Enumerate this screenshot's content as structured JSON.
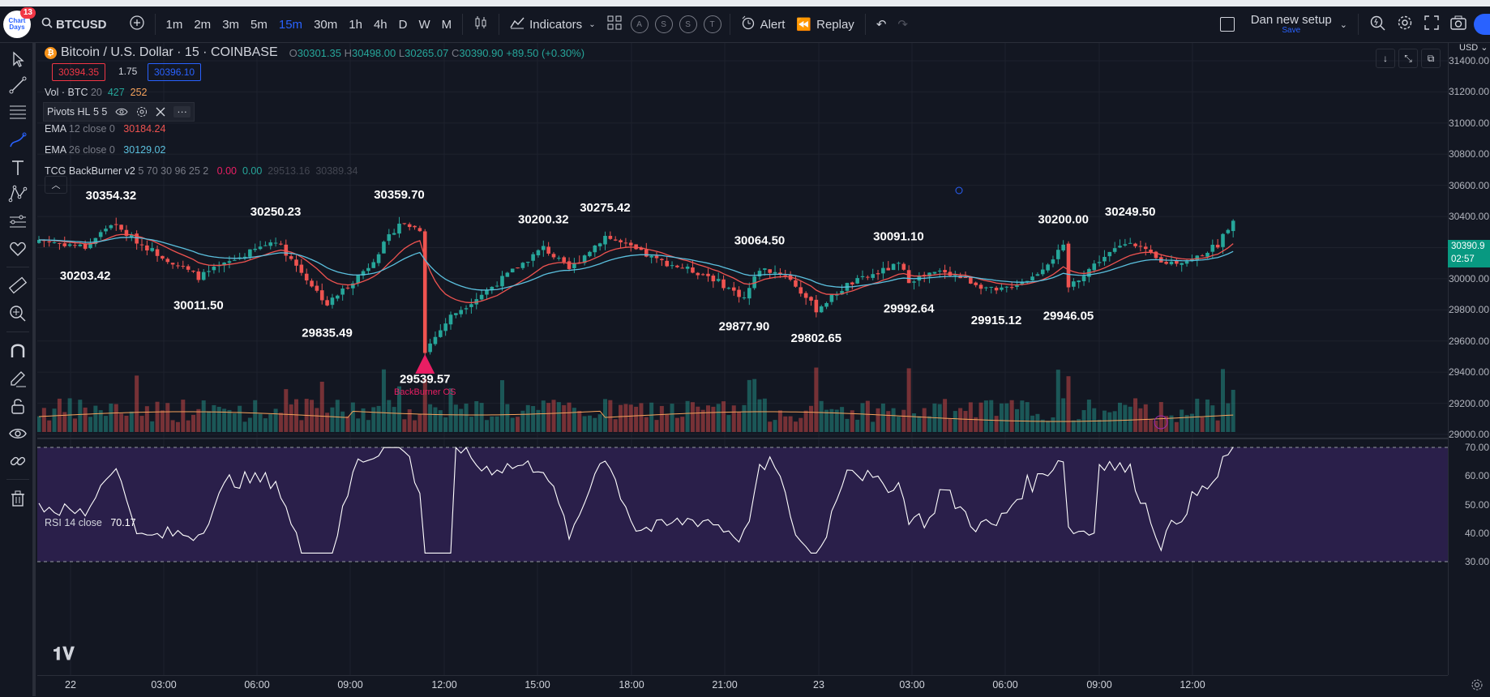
{
  "header": {
    "avatar_text": "Chart\nDays",
    "notifications": "13",
    "symbol": "BTCUSD",
    "intervals": [
      "1m",
      "2m",
      "3m",
      "5m",
      "15m",
      "30m",
      "1h",
      "4h",
      "D",
      "W",
      "M"
    ],
    "active_interval": "15m",
    "indicators_label": "Indicators",
    "alert_label": "Alert",
    "replay_label": "Replay",
    "circle_tools": [
      "A",
      "S",
      "S",
      "T"
    ],
    "layout_name": "Dan new setup",
    "layout_save": "Save"
  },
  "legend": {
    "title": "Bitcoin / U.S. Dollar · 15 · COINBASE",
    "ohlc": {
      "o_label": "O",
      "o": "30301.35",
      "h_label": "H",
      "h": "30498.00",
      "l_label": "L",
      "l": "30265.07",
      "c_label": "C",
      "c": "30390.90",
      "change": "+89.50 (+0.30%)"
    },
    "bid": "30394.35",
    "spread": "1.75",
    "ask": "30396.10",
    "vol": {
      "name": "Vol · BTC",
      "param": "20",
      "v1": "427",
      "v2": "252"
    },
    "pivots": {
      "name": "Pivots HL",
      "param": "5 5"
    },
    "ema12": {
      "name": "EMA",
      "param": "12 close 0",
      "value": "30184.24"
    },
    "ema26": {
      "name": "EMA",
      "param": "26 close 0",
      "value": "30129.02"
    },
    "tcg": {
      "name": "TCG BackBurner v2",
      "param": "5 70 30 96 25 2",
      "v1": "0.00",
      "v2": "0.00",
      "v3": "29513.16",
      "v4": "30389.34"
    },
    "rsi": {
      "name": "RSI",
      "param": "14 close",
      "value": "70.17"
    }
  },
  "price_scale": {
    "currency": "USD",
    "ticks": [
      "31400.00",
      "31200.00",
      "31000.00",
      "30800.00",
      "30600.00",
      "30400.00",
      "30200.00",
      "30000.00",
      "29800.00",
      "29600.00",
      "29400.00",
      "29200.00",
      "29000.00"
    ],
    "last_price": "30390.9",
    "countdown": "02:57",
    "rsi_ticks": [
      "70.00",
      "60.00",
      "50.00",
      "40.00",
      "30.00"
    ]
  },
  "time_axis": [
    "22",
    "03:00",
    "06:00",
    "09:00",
    "12:00",
    "15:00",
    "18:00",
    "21:00",
    "23",
    "03:00",
    "06:00",
    "09:00",
    "12:00"
  ],
  "pivot_labels": [
    {
      "text": "30354.32",
      "price": 30354.32,
      "t": 14,
      "pos": "above"
    },
    {
      "text": "30203.42",
      "price": 30203.42,
      "t": 9,
      "pos": "below"
    },
    {
      "text": "30011.50",
      "price": 30011.5,
      "t": 31,
      "pos": "below"
    },
    {
      "text": "30250.23",
      "price": 30250.23,
      "t": 46,
      "pos": "above"
    },
    {
      "text": "29835.49",
      "price": 29835.49,
      "t": 56,
      "pos": "below"
    },
    {
      "text": "30359.70",
      "price": 30359.7,
      "t": 70,
      "pos": "above"
    },
    {
      "text": "29539.57",
      "price": 29539.57,
      "t": 75,
      "pos": "below"
    },
    {
      "text": "30200.32",
      "price": 30200.32,
      "t": 98,
      "pos": "above"
    },
    {
      "text": "30275.42",
      "price": 30275.42,
      "t": 110,
      "pos": "above"
    },
    {
      "text": "29877.90",
      "price": 29877.9,
      "t": 137,
      "pos": "below"
    },
    {
      "text": "30064.50",
      "price": 30064.5,
      "t": 140,
      "pos": "above"
    },
    {
      "text": "29802.65",
      "price": 29802.65,
      "t": 151,
      "pos": "below"
    },
    {
      "text": "30091.10",
      "price": 30091.1,
      "t": 167,
      "pos": "above"
    },
    {
      "text": "29992.64",
      "price": 29992.64,
      "t": 169,
      "pos": "below"
    },
    {
      "text": "29915.12",
      "price": 29915.12,
      "t": 186,
      "pos": "below"
    },
    {
      "text": "30200.00",
      "price": 30200.0,
      "t": 199,
      "pos": "above"
    },
    {
      "text": "29946.05",
      "price": 29946.05,
      "t": 200,
      "pos": "below"
    },
    {
      "text": "30249.50",
      "price": 30249.5,
      "t": 212,
      "pos": "above"
    }
  ],
  "signal": {
    "text": "BackBurner OS",
    "t": 75
  },
  "colors": {
    "up": "#26a69a",
    "down": "#ef5350",
    "ema12": "#ef5350",
    "ema26": "#22ab94",
    "ema26_line": "#5bc0de",
    "vol_ma": "#f7a35c",
    "rsi": "#ffffff",
    "rsi_bg": "#2a1f4a",
    "signal": "#e91e63",
    "accent": "#2962ff"
  }
}
